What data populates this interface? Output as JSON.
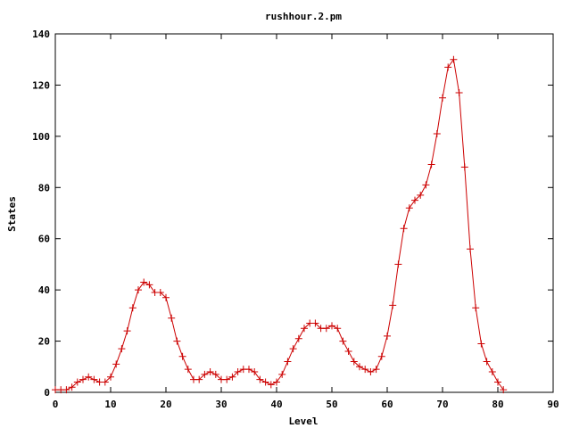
{
  "chart_data": {
    "type": "line",
    "title": "rushhour.2.pm",
    "x_label": "Level",
    "y_label": "States",
    "x": [
      0,
      1,
      2,
      3,
      4,
      5,
      6,
      7,
      8,
      9,
      10,
      11,
      12,
      13,
      14,
      15,
      16,
      17,
      18,
      19,
      20,
      21,
      22,
      23,
      24,
      25,
      26,
      27,
      28,
      29,
      30,
      31,
      32,
      33,
      34,
      35,
      36,
      37,
      38,
      39,
      40,
      41,
      42,
      43,
      44,
      45,
      46,
      47,
      48,
      49,
      50,
      51,
      52,
      53,
      54,
      55,
      56,
      57,
      58,
      59,
      60,
      61,
      62,
      63,
      64,
      65,
      66,
      67,
      68,
      69,
      70,
      71,
      72,
      73,
      74,
      75,
      76,
      77,
      78,
      79,
      80,
      81
    ],
    "series": [
      {
        "color": "#cc0000",
        "values": [
          1,
          1,
          1,
          2,
          4,
          5,
          6,
          5,
          4,
          4,
          6,
          11,
          17,
          24,
          33,
          40,
          43,
          42,
          39,
          39,
          37,
          29,
          20,
          14,
          9,
          5,
          5,
          7,
          8,
          7,
          5,
          5,
          6,
          8,
          9,
          9,
          8,
          5,
          4,
          3,
          4,
          7,
          12,
          17,
          21,
          25,
          27,
          27,
          25,
          25,
          26,
          25,
          20,
          16,
          12,
          10,
          9,
          8,
          9,
          14,
          22,
          34,
          50,
          64,
          72,
          75,
          77,
          81,
          89,
          101,
          115,
          127,
          130,
          117,
          88,
          56,
          33,
          19,
          12,
          8,
          4,
          1
        ]
      }
    ],
    "xlim": [
      0,
      90
    ],
    "xticks": [
      0,
      10,
      20,
      30,
      40,
      50,
      60,
      70,
      80,
      90
    ],
    "ylim": [
      0,
      140
    ],
    "yticks": [
      0,
      20,
      40,
      60,
      80,
      100,
      120,
      140
    ]
  }
}
